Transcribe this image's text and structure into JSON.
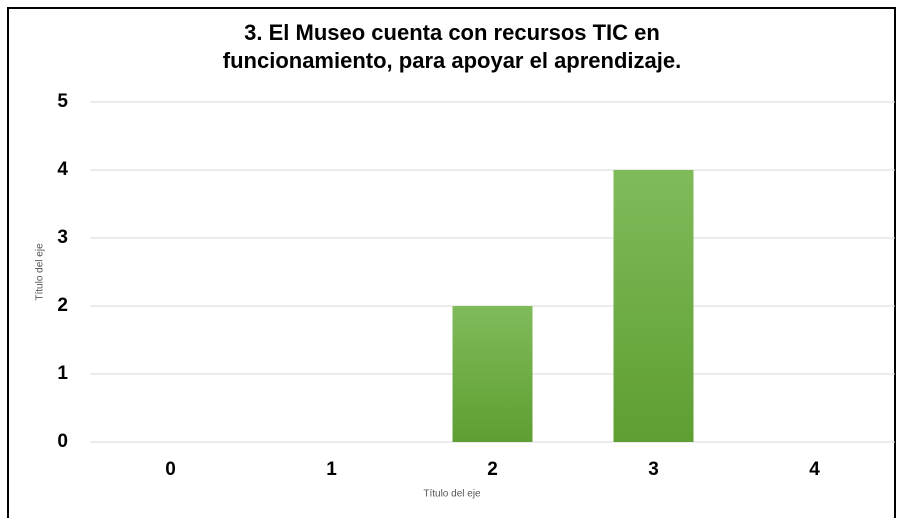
{
  "chart_data": {
    "type": "bar",
    "title": [
      "3. El Museo cuenta con recursos TIC en",
      "funcionamiento, para apoyar el aprendizaje."
    ],
    "x_label": "Título del eje",
    "y_label": "Título del eje",
    "categories": [
      "0",
      "1",
      "2",
      "3",
      "4"
    ],
    "values": [
      0,
      0,
      2,
      4,
      0
    ],
    "color": "#6aaa3e",
    "ylim": [
      0,
      5
    ],
    "yticks": [
      0,
      1,
      2,
      3,
      4,
      5
    ],
    "grid": true
  }
}
